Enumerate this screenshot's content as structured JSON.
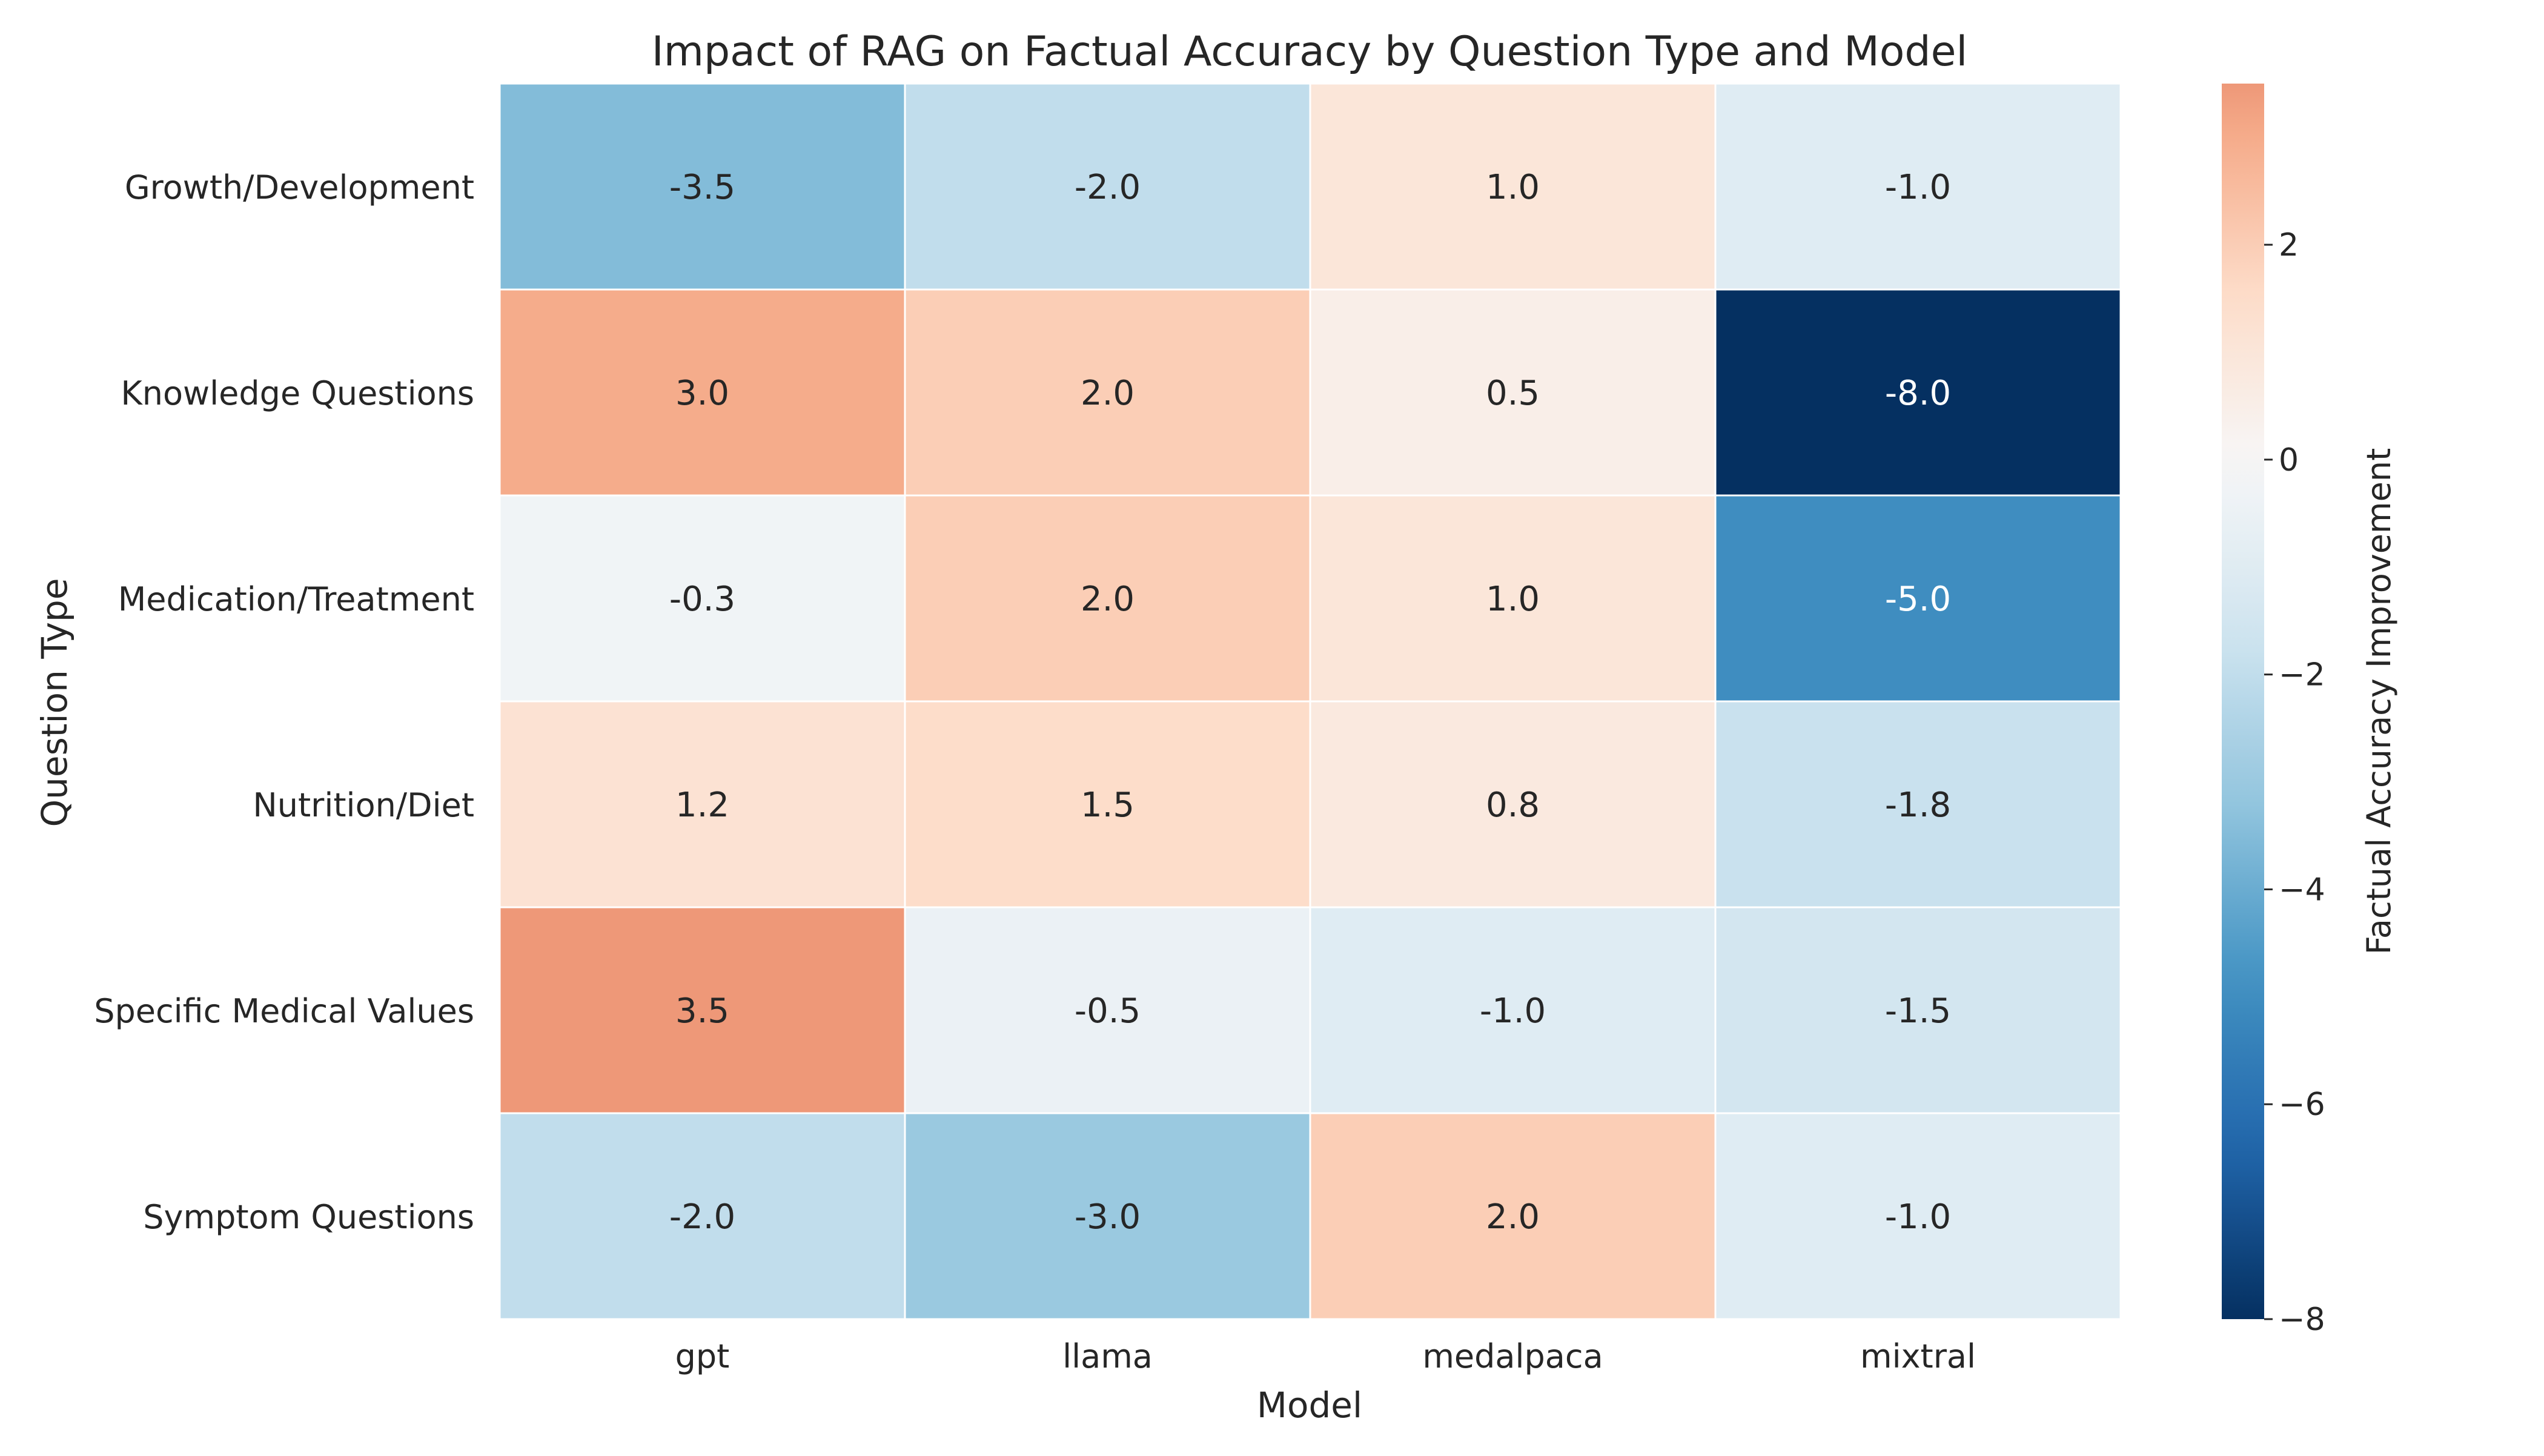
{
  "chart_data": {
    "type": "heatmap",
    "title": "Impact of RAG on Factual Accuracy by Question Type and Model",
    "xlabel": "Model",
    "ylabel": "Question Type",
    "x_categories": [
      "gpt",
      "llama",
      "medalpaca",
      "mixtral"
    ],
    "y_categories": [
      "Growth/Development",
      "Knowledge Questions",
      "Medication/Treatment",
      "Nutrition/Diet",
      "Specific Medical Values",
      "Symptom Questions"
    ],
    "values": [
      [
        -3.5,
        -2.0,
        1.0,
        -1.0
      ],
      [
        3.0,
        2.0,
        0.5,
        -8.0
      ],
      [
        -0.3,
        2.0,
        1.0,
        -5.0
      ],
      [
        1.2,
        1.5,
        0.8,
        -1.8
      ],
      [
        3.5,
        -0.5,
        -1.0,
        -1.5
      ],
      [
        -2.0,
        -3.0,
        2.0,
        -1.0
      ]
    ],
    "value_format": "0.1f",
    "colorbar": {
      "label": "Factual Accuracy Improvement",
      "min": -8,
      "max": 3.5,
      "center": 0,
      "ticks": [
        2,
        0,
        -2,
        -4,
        -6,
        -8
      ],
      "colormap": "RdBu_r"
    },
    "grid": false,
    "legend": "colorbar-right"
  }
}
